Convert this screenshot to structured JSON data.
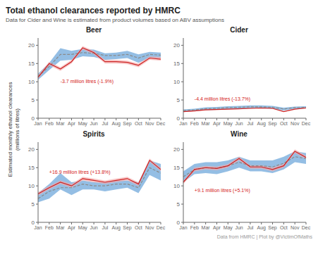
{
  "title": "Total ethanol clearances reported by HMRC",
  "subtitle": "Data for Cider and Wine is estimated from product volumes based on ABV assumptions",
  "annotation": "Data from HMRC | Plot by @VictimOfMaths",
  "ylabel": "Estimated monthly ethanol clearances\n(millions of litres)",
  "chart_data": [
    {
      "type": "line",
      "title": "Beer",
      "annotation": {
        "text": "-3.7 million litres (-1.9%)",
        "color": "#d42020",
        "x": "Mar",
        "y": 10.8
      },
      "categories": [
        "Jan",
        "Feb",
        "Mar",
        "Apr",
        "May",
        "Jun",
        "Jul",
        "Aug",
        "Sep",
        "Oct",
        "Nov",
        "Dec"
      ],
      "ylim": [
        0,
        22
      ],
      "yticks": [
        0,
        5,
        10,
        15,
        20
      ],
      "series": [
        {
          "type": "area",
          "color": "#5B9BD5",
          "upper": [
            12.2,
            15.2,
            19.2,
            18.5,
            19.0,
            18.8,
            17.8,
            18.0,
            18.5,
            17.5,
            18.2,
            18.0
          ],
          "lower": [
            10.5,
            13.2,
            15.8,
            16.0,
            17.0,
            16.8,
            16.0,
            16.2,
            16.5,
            15.2,
            16.5,
            16.5
          ]
        },
        {
          "type": "area",
          "color": "#F4AAAA",
          "upper": [
            11.8,
            15.5,
            14.0,
            16.0,
            19.8,
            18.5,
            16.0,
            16.0,
            15.8,
            15.0,
            17.0,
            16.8
          ],
          "lower": [
            10.8,
            14.5,
            13.0,
            15.0,
            18.8,
            17.5,
            15.0,
            15.0,
            14.8,
            14.0,
            16.0,
            15.8
          ]
        },
        {
          "type": "line",
          "color": "#8a8a8a",
          "line_style": "dashed",
          "values": [
            11.5,
            14.2,
            17.5,
            17.5,
            18.0,
            17.8,
            17.2,
            17.2,
            17.5,
            16.5,
            17.5,
            17.3
          ]
        },
        {
          "type": "line",
          "color": "#cc2222",
          "line_style": "solid",
          "values": [
            11.2,
            15.0,
            13.5,
            15.5,
            19.3,
            18.0,
            15.5,
            15.5,
            15.3,
            14.5,
            16.5,
            16.2
          ]
        }
      ]
    },
    {
      "type": "line",
      "title": "Cider",
      "annotation": {
        "text": "-4.4 million litres (-13.7%)",
        "color": "#d42020",
        "x": "Feb",
        "y": 6.0
      },
      "categories": [
        "Jan",
        "Feb",
        "Mar",
        "Apr",
        "May",
        "Jun",
        "Jul",
        "Aug",
        "Sep",
        "Oct",
        "Nov",
        "Dec"
      ],
      "ylim": [
        0,
        22
      ],
      "yticks": [
        0,
        5,
        10,
        15,
        20
      ],
      "series": [
        {
          "type": "area",
          "color": "#5B9BD5",
          "upper": [
            2.4,
            2.6,
            3.0,
            3.1,
            3.3,
            3.4,
            3.5,
            3.5,
            3.4,
            2.9,
            3.2,
            3.3
          ],
          "lower": [
            1.8,
            2.0,
            2.2,
            2.3,
            2.5,
            2.6,
            2.7,
            2.7,
            2.6,
            2.1,
            2.6,
            2.7
          ]
        },
        {
          "type": "area",
          "color": "#F4AAAA",
          "upper": [
            1.9,
            2.1,
            2.4,
            2.5,
            2.6,
            2.7,
            2.8,
            2.9,
            2.8,
            1.9,
            2.6,
            2.9
          ],
          "lower": [
            1.7,
            1.9,
            2.2,
            2.3,
            2.4,
            2.5,
            2.6,
            2.7,
            2.6,
            1.7,
            2.4,
            2.7
          ]
        },
        {
          "type": "line",
          "color": "#8a8a8a",
          "line_style": "dashed",
          "values": [
            2.1,
            2.3,
            2.6,
            2.7,
            2.9,
            3.0,
            3.1,
            3.1,
            3.0,
            2.5,
            2.9,
            3.0
          ]
        },
        {
          "type": "line",
          "color": "#cc2222",
          "line_style": "solid",
          "values": [
            1.8,
            2.0,
            2.3,
            2.4,
            2.5,
            2.6,
            2.7,
            2.8,
            2.7,
            1.8,
            2.5,
            2.8
          ]
        }
      ]
    },
    {
      "type": "line",
      "title": "Spirits",
      "annotation": {
        "text": "+16.9 million litres (+13.8%)",
        "color": "#d42020",
        "x": "Feb",
        "y": 14.5
      },
      "categories": [
        "Jan",
        "Feb",
        "Mar",
        "Apr",
        "May",
        "Jun",
        "Jul",
        "Aug",
        "Sep",
        "Oct",
        "Nov",
        "Dec"
      ],
      "ylim": [
        0,
        22
      ],
      "yticks": [
        0,
        5,
        10,
        15,
        20
      ],
      "series": [
        {
          "type": "area",
          "color": "#5B9BD5",
          "upper": [
            8.0,
            10.5,
            13.5,
            11.0,
            11.5,
            11.0,
            11.0,
            11.5,
            11.5,
            11.0,
            17.0,
            16.0
          ],
          "lower": [
            5.5,
            6.5,
            9.0,
            7.5,
            9.0,
            9.0,
            8.5,
            9.0,
            9.5,
            8.0,
            13.0,
            11.5
          ]
        },
        {
          "type": "area",
          "color": "#F4AAAA",
          "upper": [
            8.3,
            10.0,
            11.5,
            10.5,
            12.5,
            12.0,
            11.5,
            12.0,
            12.5,
            11.0,
            17.5,
            15.0
          ],
          "lower": [
            7.3,
            9.0,
            10.5,
            9.5,
            11.5,
            11.0,
            10.5,
            11.0,
            11.5,
            10.0,
            16.5,
            14.0
          ]
        },
        {
          "type": "line",
          "color": "#8a8a8a",
          "line_style": "dashed",
          "values": [
            6.5,
            8.5,
            9.5,
            9.5,
            10.5,
            10.0,
            10.0,
            10.5,
            10.5,
            9.5,
            15.0,
            13.5
          ]
        },
        {
          "type": "line",
          "color": "#cc2222",
          "line_style": "solid",
          "values": [
            7.8,
            9.5,
            11.0,
            10.0,
            12.0,
            11.5,
            11.0,
            11.5,
            12.0,
            10.5,
            17.0,
            14.5
          ]
        }
      ]
    },
    {
      "type": "line",
      "title": "Wine",
      "annotation": {
        "text": "+9.1 million litres (+5.1%)",
        "color": "#d42020",
        "x": "Feb",
        "y": 9.5
      },
      "categories": [
        "Jan",
        "Feb",
        "Mar",
        "Apr",
        "May",
        "Jun",
        "Jul",
        "Aug",
        "Sep",
        "Oct",
        "Nov",
        "Dec"
      ],
      "ylim": [
        0,
        22
      ],
      "yticks": [
        0,
        5,
        10,
        15,
        20
      ],
      "series": [
        {
          "type": "area",
          "color": "#5B9BD5",
          "upper": [
            14.0,
            16.0,
            16.5,
            16.5,
            17.0,
            18.0,
            17.0,
            17.0,
            17.0,
            18.0,
            19.5,
            19.0
          ],
          "lower": [
            11.0,
            13.2,
            13.5,
            13.2,
            14.0,
            15.0,
            14.0,
            14.0,
            13.5,
            14.5,
            16.5,
            16.0
          ]
        },
        {
          "type": "area",
          "color": "#F4AAAA",
          "upper": [
            11.5,
            15.0,
            15.5,
            15.3,
            16.0,
            18.0,
            15.7,
            15.7,
            15.0,
            16.0,
            20.0,
            18.3
          ],
          "lower": [
            10.5,
            14.0,
            14.5,
            14.3,
            15.0,
            17.0,
            14.7,
            14.7,
            14.0,
            15.0,
            19.0,
            17.3
          ]
        },
        {
          "type": "line",
          "color": "#8a8a8a",
          "line_style": "dashed",
          "values": [
            12.5,
            14.5,
            15.0,
            14.8,
            15.5,
            16.5,
            15.5,
            15.5,
            15.2,
            16.2,
            18.0,
            17.5
          ]
        },
        {
          "type": "line",
          "color": "#cc2222",
          "line_style": "solid",
          "values": [
            11.0,
            14.5,
            15.0,
            14.8,
            15.5,
            17.5,
            15.2,
            15.2,
            14.5,
            15.5,
            19.5,
            17.8
          ]
        }
      ]
    }
  ]
}
